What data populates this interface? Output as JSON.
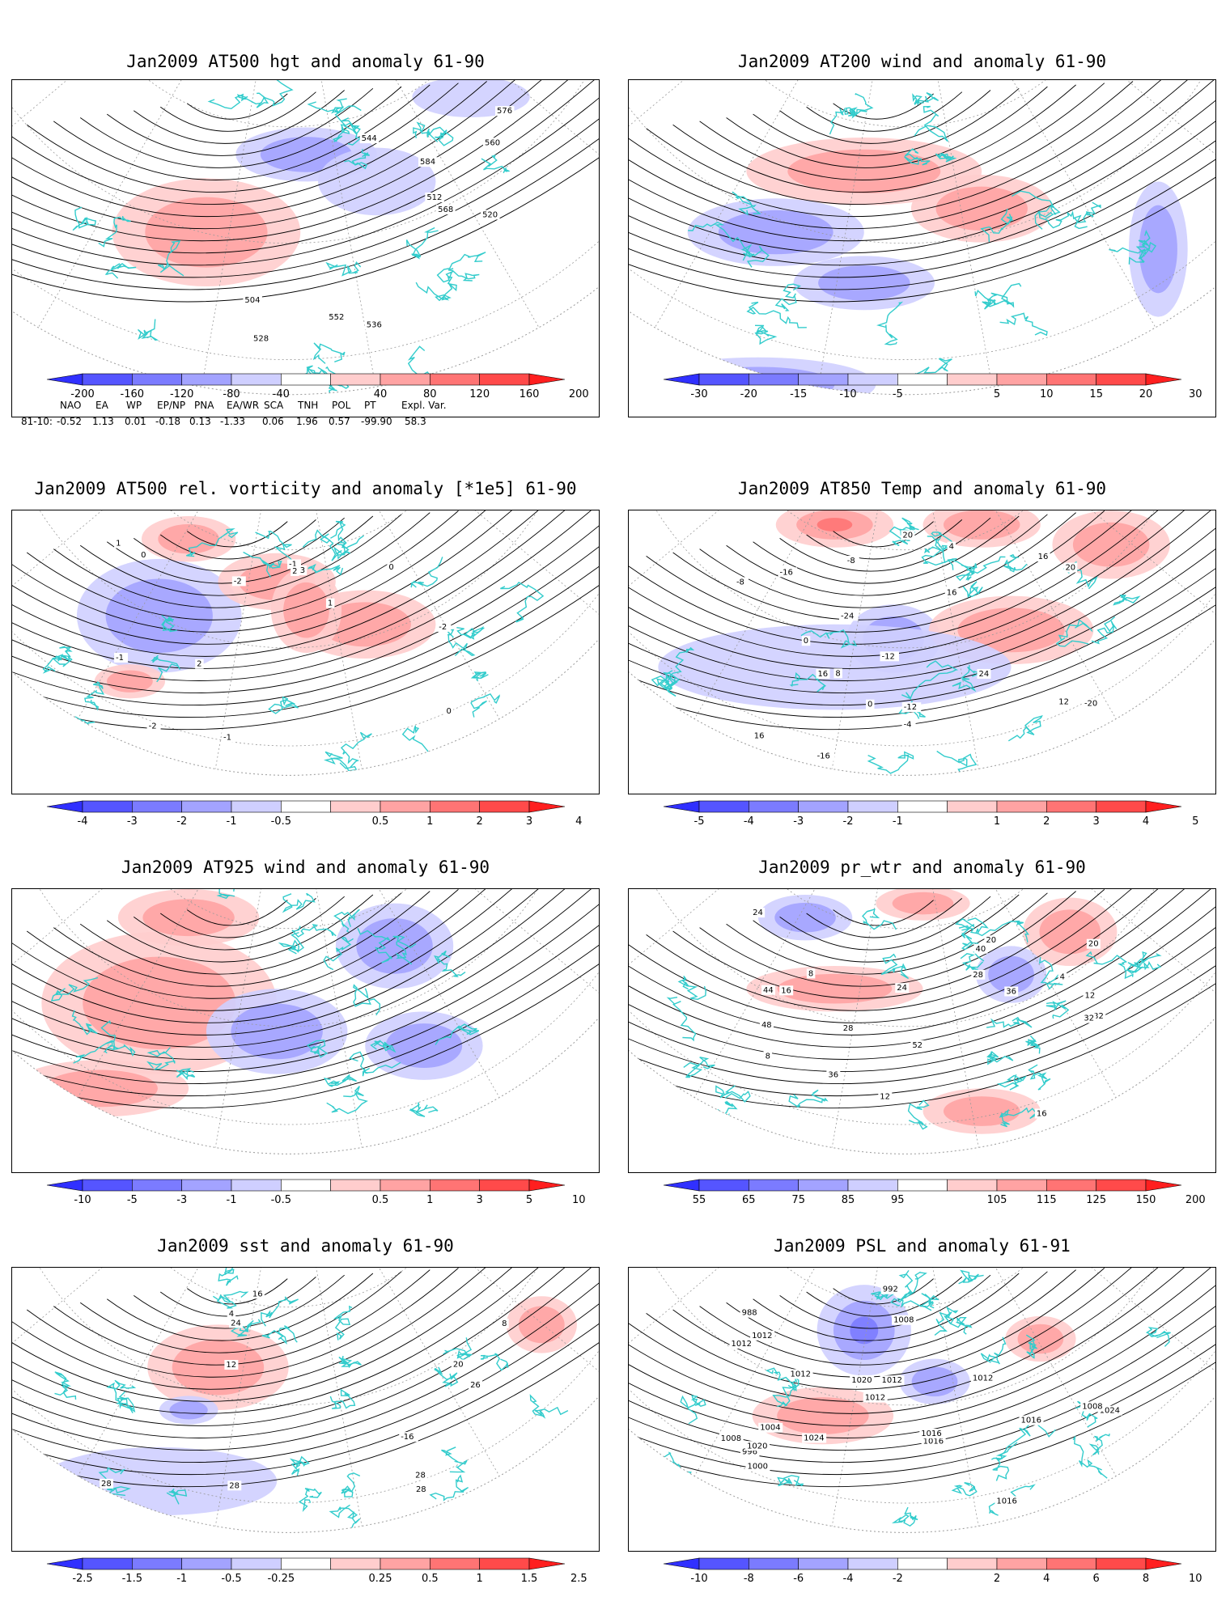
{
  "panels": [
    {
      "id": "p1",
      "title": "Jan2009 AT500 hgt and anomaly 61-90",
      "contour_labels": [
        "504",
        "512",
        "520",
        "528",
        "536",
        "544",
        "552",
        "560",
        "568",
        "576",
        "584"
      ],
      "colorbar": {
        "labels": [
          "-200",
          "-160",
          "-120",
          "-80",
          "-40",
          "40",
          "80",
          "120",
          "160",
          "200"
        ],
        "colors": [
          "#3030ff",
          "#5555ff",
          "#7b7bff",
          "#a3a3ff",
          "#cfcfff",
          "#ffffff",
          "#ffcdcd",
          "#ffa3a3",
          "#ff7474",
          "#ff4a4a",
          "#ff1f1f"
        ]
      }
    },
    {
      "id": "p2",
      "title": "Jan2009 AT200 wind and anomaly 61-90",
      "contour_labels": [],
      "colorbar": {
        "labels": [
          "-30",
          "-20",
          "-15",
          "-10",
          "-5",
          "5",
          "10",
          "15",
          "20",
          "30"
        ],
        "colors": [
          "#3030ff",
          "#5555ff",
          "#7b7bff",
          "#a3a3ff",
          "#cfcfff",
          "#ffffff",
          "#ffcdcd",
          "#ffa3a3",
          "#ff7474",
          "#ff4a4a",
          "#ff1f1f"
        ]
      }
    },
    {
      "id": "p3",
      "title": "Jan2009 AT500 rel. vorticity and anomaly [*1e5] 61-90",
      "contour_labels": [
        "-2",
        "-2",
        "-1",
        "-1",
        "0",
        "0",
        "1",
        "1",
        "2",
        "2",
        "3",
        "-2",
        "-1",
        "0"
      ],
      "colorbar": {
        "labels": [
          "-4",
          "-3",
          "-2",
          "-1",
          "-0.5",
          "0.5",
          "1",
          "2",
          "3",
          "4"
        ],
        "colors": [
          "#3030ff",
          "#5555ff",
          "#7b7bff",
          "#a3a3ff",
          "#cfcfff",
          "#ffffff",
          "#ffcdcd",
          "#ffa3a3",
          "#ff7474",
          "#ff4a4a",
          "#ff1f1f"
        ]
      }
    },
    {
      "id": "p4",
      "title": "Jan2009 AT850 Temp and anomaly 61-90",
      "contour_labels": [
        "16",
        "16",
        "-20",
        "-24",
        "-16",
        "-12",
        "-8",
        "-4",
        "0",
        "4",
        "8",
        "12",
        "16",
        "20",
        "24",
        "20",
        "-16",
        "-12",
        "-8",
        "0",
        "16"
      ],
      "colorbar": {
        "labels": [
          "-5",
          "-4",
          "-3",
          "-2",
          "-1",
          "1",
          "2",
          "3",
          "4",
          "5"
        ],
        "colors": [
          "#3030ff",
          "#5555ff",
          "#7b7bff",
          "#a3a3ff",
          "#cfcfff",
          "#ffffff",
          "#ffcdcd",
          "#ffa3a3",
          "#ff7474",
          "#ff4a4a",
          "#ff1f1f"
        ]
      }
    },
    {
      "id": "p5",
      "title": "Jan2009 AT925 wind and anomaly 61-90",
      "contour_labels": [],
      "colorbar": {
        "labels": [
          "-10",
          "-5",
          "-3",
          "-1",
          "-0.5",
          "0.5",
          "1",
          "3",
          "5",
          "10"
        ],
        "colors": [
          "#3030ff",
          "#5555ff",
          "#7b7bff",
          "#a3a3ff",
          "#cfcfff",
          "#ffffff",
          "#ffcdcd",
          "#ffa3a3",
          "#ff7474",
          "#ff4a4a",
          "#ff1f1f"
        ]
      }
    },
    {
      "id": "p6",
      "title": "Jan2009 pr_wtr and anomaly 61-90",
      "contour_labels": [
        "44",
        "24",
        "52",
        "32",
        "48",
        "36",
        "40",
        "16",
        "12",
        "8",
        "4",
        "20",
        "24",
        "28",
        "32",
        "36",
        "40",
        "44",
        "16",
        "12",
        "8",
        "20",
        "28",
        "44"
      ],
      "colorbar": {
        "labels": [
          "55",
          "65",
          "75",
          "85",
          "95",
          "105",
          "115",
          "125",
          "150",
          "200"
        ],
        "colors": [
          "#3030ff",
          "#5555ff",
          "#7b7bff",
          "#a3a3ff",
          "#cfcfff",
          "#ffffff",
          "#ffcdcd",
          "#ffa3a3",
          "#ff7474",
          "#ff4a4a",
          "#ff1f1f"
        ]
      }
    },
    {
      "id": "p7",
      "title": "Jan2009 sst and anomaly 61-90",
      "contour_labels": [
        "28",
        "28",
        "20",
        "16",
        "12",
        "8",
        "4",
        "24",
        "28",
        "26",
        "-16",
        "28"
      ],
      "colorbar": {
        "labels": [
          "-2.5",
          "-1.5",
          "-1",
          "-0.5",
          "-0.25",
          "0.25",
          "0.5",
          "1",
          "1.5",
          "2.5"
        ],
        "colors": [
          "#3030ff",
          "#5555ff",
          "#7b7bff",
          "#a3a3ff",
          "#cfcfff",
          "#ffffff",
          "#ffcdcd",
          "#ffa3a3",
          "#ff7474",
          "#ff4a4a",
          "#ff1f1f"
        ]
      }
    },
    {
      "id": "p8",
      "title": "Jan2009 PSL and anomaly 61-91",
      "contour_labels": [
        "1016",
        "1008",
        "1012",
        "1000",
        "996",
        "992",
        "988",
        "1004",
        "1008",
        "1012",
        "1016",
        "1020",
        "1024",
        "1012",
        "1016",
        "1020",
        "1024",
        "1012",
        "1016",
        "1008",
        "1012",
        "1012",
        "1012"
      ],
      "colorbar": {
        "labels": [
          "-10",
          "-8",
          "-6",
          "-4",
          "-2",
          "2",
          "4",
          "6",
          "8",
          "10"
        ],
        "colors": [
          "#3030ff",
          "#5555ff",
          "#7b7bff",
          "#a3a3ff",
          "#cfcfff",
          "#ffffff",
          "#ffcdcd",
          "#ffa3a3",
          "#ff7474",
          "#ff4a4a",
          "#ff1f1f"
        ]
      }
    }
  ],
  "teleconnection": {
    "header": [
      "NAO",
      "EA",
      "WP",
      "EP/NP",
      "PNA",
      "EA/WR",
      "SCA",
      "TNH",
      "POL",
      "PT",
      "Expl. Var."
    ],
    "row_label": "81-10:",
    "values": [
      "-0.52",
      "1.13",
      "0.01",
      "-0.18",
      "0.13",
      "-1.33",
      "0.06",
      "1.96",
      "0.57",
      "-99.90",
      "58.3"
    ]
  },
  "chart_data": [
    {
      "type": "heatmap",
      "title": "Jan2009 AT500 hgt and anomaly 61-90",
      "variable": "500 hPa geopotential height (dam) with anomaly",
      "contour_levels": [
        504,
        512,
        520,
        528,
        536,
        544,
        552,
        560,
        568,
        576,
        584
      ],
      "anomaly_levels": [
        -200,
        -160,
        -120,
        -80,
        -40,
        40,
        80,
        120,
        160,
        200
      ]
    },
    {
      "type": "heatmap",
      "title": "Jan2009 AT200 wind and anomaly 61-90",
      "variable": "200 hPa wind streamlines with anomaly",
      "anomaly_levels": [
        -30,
        -20,
        -15,
        -10,
        -5,
        5,
        10,
        15,
        20,
        30
      ]
    },
    {
      "type": "heatmap",
      "title": "Jan2009 AT500 rel. vorticity and anomaly [*1e5] 61-90",
      "variable": "500 hPa relative vorticity",
      "anomaly_levels": [
        -4,
        -3,
        -2,
        -1,
        -0.5,
        0.5,
        1,
        2,
        3,
        4
      ]
    },
    {
      "type": "heatmap",
      "title": "Jan2009 AT850 Temp and anomaly 61-90",
      "variable": "850 hPa temperature",
      "anomaly_levels": [
        -5,
        -4,
        -3,
        -2,
        -1,
        1,
        2,
        3,
        4,
        5
      ]
    },
    {
      "type": "heatmap",
      "title": "Jan2009 AT925 wind and anomaly 61-90",
      "variable": "925 hPa wind streamlines",
      "anomaly_levels": [
        -10,
        -5,
        -3,
        -1,
        -0.5,
        0.5,
        1,
        3,
        5,
        10
      ]
    },
    {
      "type": "heatmap",
      "title": "Jan2009 pr_wtr and anomaly 61-90",
      "variable": "precipitable water",
      "anomaly_levels": [
        55,
        65,
        75,
        85,
        95,
        105,
        115,
        125,
        150,
        200
      ]
    },
    {
      "type": "heatmap",
      "title": "Jan2009 sst and anomaly 61-90",
      "variable": "sea surface temperature",
      "anomaly_levels": [
        -2.5,
        -1.5,
        -1,
        -0.5,
        -0.25,
        0.25,
        0.5,
        1,
        1.5,
        2.5
      ]
    },
    {
      "type": "heatmap",
      "title": "Jan2009 PSL and anomaly 61-91",
      "variable": "sea level pressure",
      "anomaly_levels": [
        -10,
        -8,
        -6,
        -4,
        -2,
        2,
        4,
        6,
        8,
        10
      ]
    }
  ],
  "colors": {
    "coast": "#33cccc",
    "contour": "#000000",
    "grid": "#9a9a9a",
    "frame": "#000000"
  }
}
